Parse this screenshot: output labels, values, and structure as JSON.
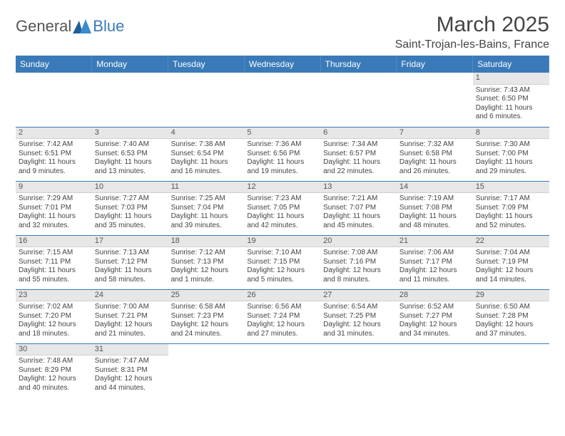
{
  "logo": {
    "text1": "General",
    "text2": "Blue"
  },
  "title": "March 2025",
  "location": "Saint-Trojan-les-Bains, France",
  "colors": {
    "accent": "#3a7ab8",
    "daybar_bg": "#e7e7e7",
    "text": "#444444",
    "bg": "#ffffff"
  },
  "dayHeaders": [
    "Sunday",
    "Monday",
    "Tuesday",
    "Wednesday",
    "Thursday",
    "Friday",
    "Saturday"
  ],
  "weeks": [
    [
      null,
      null,
      null,
      null,
      null,
      null,
      {
        "n": "1",
        "sunrise": "Sunrise: 7:43 AM",
        "sunset": "Sunset: 6:50 PM",
        "day1": "Daylight: 11 hours",
        "day2": "and 6 minutes."
      }
    ],
    [
      {
        "n": "2",
        "sunrise": "Sunrise: 7:42 AM",
        "sunset": "Sunset: 6:51 PM",
        "day1": "Daylight: 11 hours",
        "day2": "and 9 minutes."
      },
      {
        "n": "3",
        "sunrise": "Sunrise: 7:40 AM",
        "sunset": "Sunset: 6:53 PM",
        "day1": "Daylight: 11 hours",
        "day2": "and 13 minutes."
      },
      {
        "n": "4",
        "sunrise": "Sunrise: 7:38 AM",
        "sunset": "Sunset: 6:54 PM",
        "day1": "Daylight: 11 hours",
        "day2": "and 16 minutes."
      },
      {
        "n": "5",
        "sunrise": "Sunrise: 7:36 AM",
        "sunset": "Sunset: 6:56 PM",
        "day1": "Daylight: 11 hours",
        "day2": "and 19 minutes."
      },
      {
        "n": "6",
        "sunrise": "Sunrise: 7:34 AM",
        "sunset": "Sunset: 6:57 PM",
        "day1": "Daylight: 11 hours",
        "day2": "and 22 minutes."
      },
      {
        "n": "7",
        "sunrise": "Sunrise: 7:32 AM",
        "sunset": "Sunset: 6:58 PM",
        "day1": "Daylight: 11 hours",
        "day2": "and 26 minutes."
      },
      {
        "n": "8",
        "sunrise": "Sunrise: 7:30 AM",
        "sunset": "Sunset: 7:00 PM",
        "day1": "Daylight: 11 hours",
        "day2": "and 29 minutes."
      }
    ],
    [
      {
        "n": "9",
        "sunrise": "Sunrise: 7:29 AM",
        "sunset": "Sunset: 7:01 PM",
        "day1": "Daylight: 11 hours",
        "day2": "and 32 minutes."
      },
      {
        "n": "10",
        "sunrise": "Sunrise: 7:27 AM",
        "sunset": "Sunset: 7:03 PM",
        "day1": "Daylight: 11 hours",
        "day2": "and 35 minutes."
      },
      {
        "n": "11",
        "sunrise": "Sunrise: 7:25 AM",
        "sunset": "Sunset: 7:04 PM",
        "day1": "Daylight: 11 hours",
        "day2": "and 39 minutes."
      },
      {
        "n": "12",
        "sunrise": "Sunrise: 7:23 AM",
        "sunset": "Sunset: 7:05 PM",
        "day1": "Daylight: 11 hours",
        "day2": "and 42 minutes."
      },
      {
        "n": "13",
        "sunrise": "Sunrise: 7:21 AM",
        "sunset": "Sunset: 7:07 PM",
        "day1": "Daylight: 11 hours",
        "day2": "and 45 minutes."
      },
      {
        "n": "14",
        "sunrise": "Sunrise: 7:19 AM",
        "sunset": "Sunset: 7:08 PM",
        "day1": "Daylight: 11 hours",
        "day2": "and 48 minutes."
      },
      {
        "n": "15",
        "sunrise": "Sunrise: 7:17 AM",
        "sunset": "Sunset: 7:09 PM",
        "day1": "Daylight: 11 hours",
        "day2": "and 52 minutes."
      }
    ],
    [
      {
        "n": "16",
        "sunrise": "Sunrise: 7:15 AM",
        "sunset": "Sunset: 7:11 PM",
        "day1": "Daylight: 11 hours",
        "day2": "and 55 minutes."
      },
      {
        "n": "17",
        "sunrise": "Sunrise: 7:13 AM",
        "sunset": "Sunset: 7:12 PM",
        "day1": "Daylight: 11 hours",
        "day2": "and 58 minutes."
      },
      {
        "n": "18",
        "sunrise": "Sunrise: 7:12 AM",
        "sunset": "Sunset: 7:13 PM",
        "day1": "Daylight: 12 hours",
        "day2": "and 1 minute."
      },
      {
        "n": "19",
        "sunrise": "Sunrise: 7:10 AM",
        "sunset": "Sunset: 7:15 PM",
        "day1": "Daylight: 12 hours",
        "day2": "and 5 minutes."
      },
      {
        "n": "20",
        "sunrise": "Sunrise: 7:08 AM",
        "sunset": "Sunset: 7:16 PM",
        "day1": "Daylight: 12 hours",
        "day2": "and 8 minutes."
      },
      {
        "n": "21",
        "sunrise": "Sunrise: 7:06 AM",
        "sunset": "Sunset: 7:17 PM",
        "day1": "Daylight: 12 hours",
        "day2": "and 11 minutes."
      },
      {
        "n": "22",
        "sunrise": "Sunrise: 7:04 AM",
        "sunset": "Sunset: 7:19 PM",
        "day1": "Daylight: 12 hours",
        "day2": "and 14 minutes."
      }
    ],
    [
      {
        "n": "23",
        "sunrise": "Sunrise: 7:02 AM",
        "sunset": "Sunset: 7:20 PM",
        "day1": "Daylight: 12 hours",
        "day2": "and 18 minutes."
      },
      {
        "n": "24",
        "sunrise": "Sunrise: 7:00 AM",
        "sunset": "Sunset: 7:21 PM",
        "day1": "Daylight: 12 hours",
        "day2": "and 21 minutes."
      },
      {
        "n": "25",
        "sunrise": "Sunrise: 6:58 AM",
        "sunset": "Sunset: 7:23 PM",
        "day1": "Daylight: 12 hours",
        "day2": "and 24 minutes."
      },
      {
        "n": "26",
        "sunrise": "Sunrise: 6:56 AM",
        "sunset": "Sunset: 7:24 PM",
        "day1": "Daylight: 12 hours",
        "day2": "and 27 minutes."
      },
      {
        "n": "27",
        "sunrise": "Sunrise: 6:54 AM",
        "sunset": "Sunset: 7:25 PM",
        "day1": "Daylight: 12 hours",
        "day2": "and 31 minutes."
      },
      {
        "n": "28",
        "sunrise": "Sunrise: 6:52 AM",
        "sunset": "Sunset: 7:27 PM",
        "day1": "Daylight: 12 hours",
        "day2": "and 34 minutes."
      },
      {
        "n": "29",
        "sunrise": "Sunrise: 6:50 AM",
        "sunset": "Sunset: 7:28 PM",
        "day1": "Daylight: 12 hours",
        "day2": "and 37 minutes."
      }
    ],
    [
      {
        "n": "30",
        "sunrise": "Sunrise: 7:48 AM",
        "sunset": "Sunset: 8:29 PM",
        "day1": "Daylight: 12 hours",
        "day2": "and 40 minutes."
      },
      {
        "n": "31",
        "sunrise": "Sunrise: 7:47 AM",
        "sunset": "Sunset: 8:31 PM",
        "day1": "Daylight: 12 hours",
        "day2": "and 44 minutes."
      },
      null,
      null,
      null,
      null,
      null
    ]
  ]
}
